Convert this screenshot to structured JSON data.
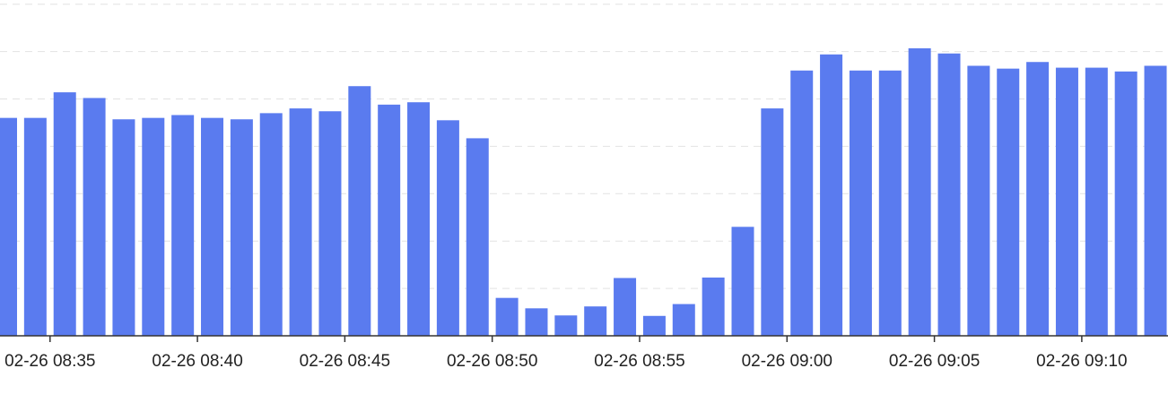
{
  "chart_data": {
    "type": "bar",
    "title": "",
    "xlabel": "",
    "ylabel": "",
    "grid": true,
    "legend": "none",
    "bar_color": "#5a7bef",
    "ylim": [
      0,
      7
    ],
    "x_tick_labels": [
      "02-26 08:35",
      "02-26 08:40",
      "02-26 08:45",
      "02-26 08:50",
      "02-26 08:55",
      "02-26 09:00",
      "02-26 09:05",
      "02-26 09:10"
    ],
    "x_tick_positions": [
      1.5,
      6.5,
      11.5,
      16.5,
      21.5,
      26.5,
      31.5,
      36.5
    ],
    "categories": [
      "08:33",
      "08:34",
      "08:35",
      "08:36",
      "08:37",
      "08:38",
      "08:39",
      "08:40",
      "08:41",
      "08:42",
      "08:43",
      "08:44",
      "08:45",
      "08:46",
      "08:47",
      "08:48",
      "08:49",
      "08:50",
      "08:51",
      "08:52",
      "08:53",
      "08:54",
      "08:55",
      "08:56",
      "08:57",
      "08:58",
      "08:59",
      "09:00",
      "09:01",
      "09:02",
      "09:03",
      "09:04",
      "09:05",
      "09:06",
      "09:07",
      "09:08",
      "09:09",
      "09:10",
      "09:11",
      "09:12"
    ],
    "values": [
      4.6,
      4.6,
      5.14,
      5.02,
      4.57,
      4.6,
      4.66,
      4.6,
      4.57,
      4.7,
      4.8,
      4.74,
      5.27,
      4.88,
      4.93,
      4.55,
      4.17,
      0.8,
      0.58,
      0.43,
      0.62,
      1.22,
      0.42,
      0.67,
      1.23,
      2.3,
      4.8,
      5.6,
      5.94,
      5.6,
      5.6,
      6.07,
      5.96,
      5.7,
      5.64,
      5.78,
      5.66,
      5.66,
      5.58,
      5.7
    ]
  }
}
